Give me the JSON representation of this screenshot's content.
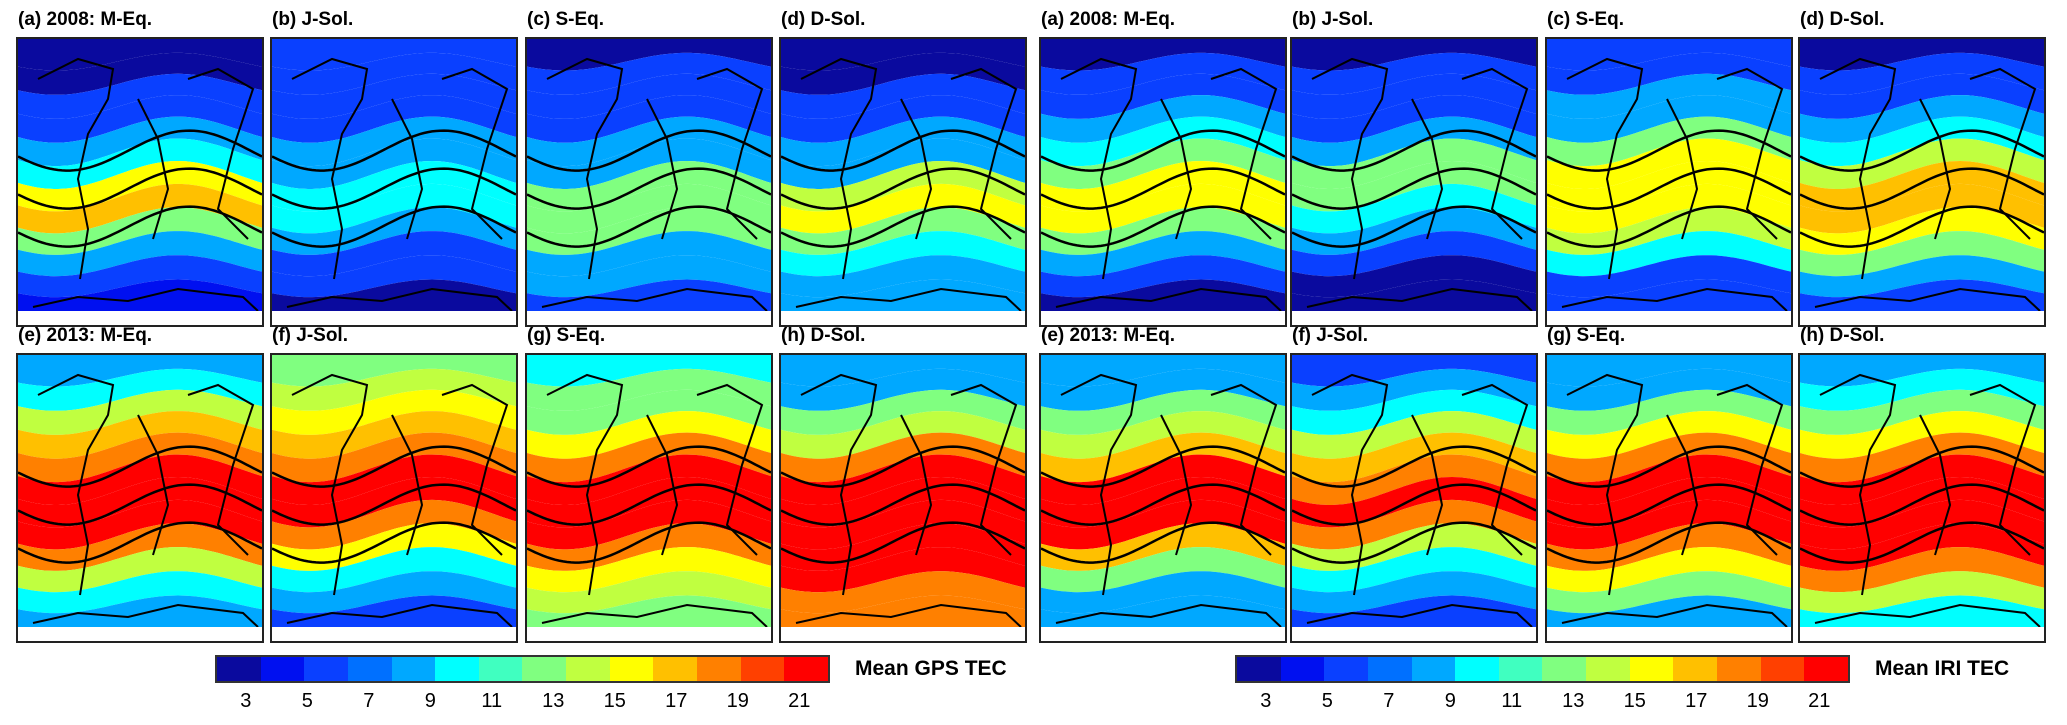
{
  "colormap": [
    "#0a0a9e",
    "#0010f0",
    "#0a40ff",
    "#0070ff",
    "#00a8ff",
    "#00ffff",
    "#40ffc0",
    "#80ff80",
    "#c0ff40",
    "#ffff00",
    "#ffc000",
    "#ff8000",
    "#ff4000",
    "#ff0000"
  ],
  "colorbar_range": [
    2,
    22
  ],
  "groups": [
    {
      "colorbar_label": "Mean GPS TEC",
      "ticks": [
        "3",
        "5",
        "7",
        "9",
        "11",
        "13",
        "15",
        "17",
        "19",
        "21"
      ],
      "panels": [
        {
          "title": "(a) 2008: M-Eq.",
          "tec_profile": [
            3,
            3,
            5,
            6,
            8,
            10,
            15,
            17,
            13,
            8,
            6,
            4
          ]
        },
        {
          "title": "(b) J-Sol.",
          "tec_profile": [
            5,
            5,
            6,
            6,
            8,
            9,
            10,
            10,
            9,
            6,
            5,
            3
          ]
        },
        {
          "title": "(c) S-Eq.",
          "tec_profile": [
            3,
            5,
            6,
            6,
            8,
            9,
            13,
            13,
            12,
            9,
            8,
            5
          ]
        },
        {
          "title": "(d) D-Sol.",
          "tec_profile": [
            2,
            3,
            5,
            6,
            8,
            9,
            14,
            15,
            13,
            10,
            9,
            8
          ]
        },
        {
          "title": "(e) 2013: M-Eq.",
          "tec_profile": [
            9,
            10,
            14,
            17,
            19,
            21,
            21,
            21,
            19,
            14,
            10,
            9
          ]
        },
        {
          "title": "(f) J-Sol.",
          "tec_profile": [
            12,
            14,
            15,
            17,
            19,
            21,
            21,
            19,
            15,
            10,
            8,
            6
          ]
        },
        {
          "title": "(g) S-Eq.",
          "tec_profile": [
            10,
            12,
            13,
            15,
            19,
            21,
            21,
            21,
            19,
            15,
            14,
            13
          ]
        },
        {
          "title": "(h) D-Sol.",
          "tec_profile": [
            8,
            9,
            12,
            14,
            19,
            21,
            21,
            21,
            21,
            21,
            19,
            19
          ]
        }
      ]
    },
    {
      "colorbar_label": "Mean IRI TEC",
      "ticks": [
        "3",
        "5",
        "7",
        "9",
        "11",
        "13",
        "15",
        "17",
        "19",
        "21"
      ],
      "panels": [
        {
          "title": "(a) 2008: M-Eq.",
          "tec_profile": [
            3,
            5,
            6,
            8,
            10,
            13,
            15,
            15,
            13,
            8,
            5,
            3
          ]
        },
        {
          "title": "(b) J-Sol.",
          "tec_profile": [
            3,
            5,
            5,
            6,
            9,
            12,
            13,
            10,
            8,
            5,
            3,
            3
          ]
        },
        {
          "title": "(c) S-Eq.",
          "tec_profile": [
            5,
            6,
            8,
            9,
            12,
            15,
            15,
            15,
            14,
            10,
            6,
            5
          ]
        },
        {
          "title": "(d) D-Sol.",
          "tec_profile": [
            3,
            5,
            6,
            8,
            10,
            14,
            17,
            17,
            15,
            12,
            9,
            6
          ]
        },
        {
          "title": "(e) 2013: M-Eq.",
          "tec_profile": [
            8,
            9,
            12,
            14,
            17,
            21,
            21,
            21,
            17,
            13,
            9,
            8
          ]
        },
        {
          "title": "(f) J-Sol.",
          "tec_profile": [
            6,
            8,
            10,
            14,
            17,
            19,
            21,
            19,
            14,
            10,
            8,
            5
          ]
        },
        {
          "title": "(g) S-Eq.",
          "tec_profile": [
            8,
            9,
            12,
            15,
            19,
            21,
            21,
            21,
            19,
            15,
            12,
            9
          ]
        },
        {
          "title": "(h) D-Sol.",
          "tec_profile": [
            8,
            10,
            13,
            15,
            19,
            21,
            21,
            21,
            21,
            19,
            14,
            10
          ]
        }
      ]
    }
  ]
}
